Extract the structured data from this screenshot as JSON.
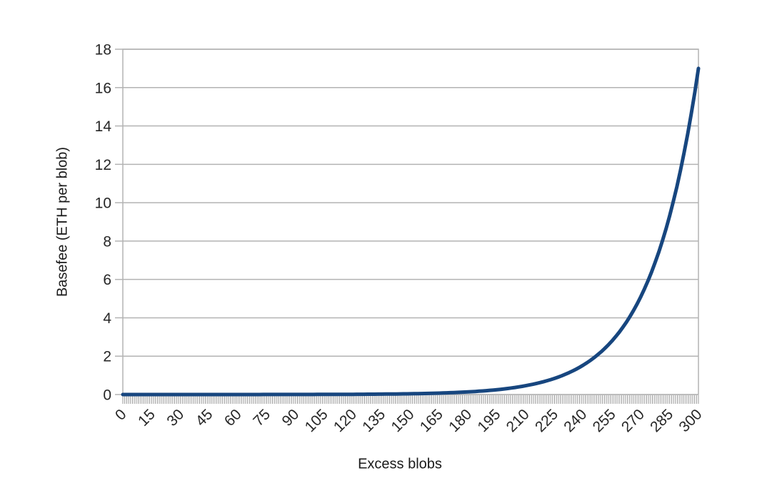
{
  "figure": {
    "background": "#ffffff"
  },
  "chart_data": {
    "type": "line",
    "title": "",
    "xlabel": "Excess blobs",
    "ylabel": "Basefee (ETH per blob)",
    "x": [
      0,
      15,
      30,
      45,
      60,
      75,
      90,
      105,
      120,
      135,
      150,
      165,
      180,
      195,
      210,
      225,
      240,
      255,
      270,
      285,
      300
    ],
    "series": [
      {
        "name": "Basefee (ETH per blob)",
        "color": "#17467f",
        "values": [
          0.0001,
          0.0002,
          0.0003,
          0.0006,
          0.0011,
          0.0021,
          0.0038,
          0.0069,
          0.0125,
          0.0229,
          0.0417,
          0.0761,
          0.1388,
          0.2531,
          0.4617,
          0.8421,
          1.536,
          2.801,
          5.11,
          9.32,
          17.0
        ],
        "interpolation": "exponential"
      }
    ],
    "xlim": [
      0,
      300
    ],
    "ylim": [
      0,
      18
    ],
    "xticks": [
      0,
      15,
      30,
      45,
      60,
      75,
      90,
      105,
      120,
      135,
      150,
      165,
      180,
      195,
      210,
      225,
      240,
      255,
      270,
      285,
      300
    ],
    "yticks": [
      0,
      2,
      4,
      6,
      8,
      10,
      12,
      14,
      16,
      18
    ],
    "minor_xtick_step": 1,
    "x_tick_label_rotation_deg": -45,
    "grid": "horizontal-only",
    "legend": "none",
    "grid_color": "#b3b3b3",
    "axis_color": "#b3b3b3",
    "minor_tick_color": "#999999",
    "tick_label_color": "#262626",
    "line_width": 5
  }
}
